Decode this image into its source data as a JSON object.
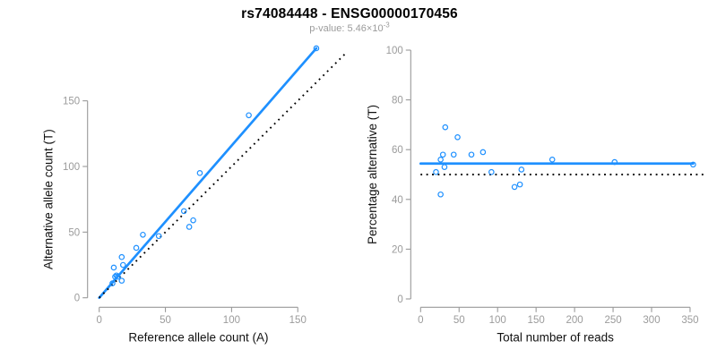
{
  "header": {
    "title": "rs74084448 - ENSG00000170456",
    "subtitle_prefix": "p-value: 5.46×10",
    "subtitle_exponent": "-3"
  },
  "colors": {
    "accent_blue": "#1E90FF",
    "axis_gray": "#999999",
    "tick_label_gray": "#9b9b9b",
    "subtitle_gray": "#9b9b9b",
    "axis_title_black": "#111111",
    "reference_line_black": "#000000",
    "background": "#ffffff"
  },
  "chart_data": [
    {
      "id": "allele-count-scatter",
      "type": "scatter",
      "xlabel": "Reference allele count (A)",
      "ylabel": "Alternative allele count (T)",
      "xticks": [
        0,
        50,
        100,
        150
      ],
      "yticks": [
        0,
        50,
        100,
        150
      ],
      "xlim": [
        0,
        186
      ],
      "ylim": [
        0,
        195
      ],
      "grid": false,
      "legend": null,
      "points": [
        [
          10,
          11
        ],
        [
          17,
          13
        ],
        [
          12,
          16
        ],
        [
          13,
          17
        ],
        [
          14,
          16
        ],
        [
          11,
          23
        ],
        [
          18,
          25
        ],
        [
          17,
          31
        ],
        [
          28,
          38
        ],
        [
          33,
          48
        ],
        [
          45,
          47
        ],
        [
          68,
          54
        ],
        [
          71,
          59
        ],
        [
          64,
          66
        ],
        [
          76,
          95
        ],
        [
          113,
          139
        ],
        [
          164,
          190
        ]
      ],
      "lines": [
        {
          "role": "fit",
          "name": "regression-line",
          "from": [
            0,
            0
          ],
          "to": [
            164,
            190
          ]
        },
        {
          "role": "identity",
          "name": "identity-line",
          "from": [
            0,
            0
          ],
          "to": [
            186,
            186
          ]
        }
      ]
    },
    {
      "id": "percentage-coverage-scatter",
      "type": "scatter",
      "xlabel": "Total number of reads",
      "ylabel": "Percentage alternative (T)",
      "xticks": [
        0,
        50,
        100,
        150,
        200,
        250,
        300,
        350
      ],
      "yticks": [
        0,
        20,
        40,
        60,
        80,
        100
      ],
      "xlim": [
        0,
        368
      ],
      "ylim": [
        0,
        100
      ],
      "grid": false,
      "legend": null,
      "points": [
        [
          20,
          51
        ],
        [
          26,
          42
        ],
        [
          26,
          56
        ],
        [
          29,
          58
        ],
        [
          31,
          53
        ],
        [
          32,
          69
        ],
        [
          43,
          58
        ],
        [
          48,
          65
        ],
        [
          66,
          58
        ],
        [
          81,
          59
        ],
        [
          92,
          51
        ],
        [
          122,
          45
        ],
        [
          129,
          46
        ],
        [
          131,
          52
        ],
        [
          171,
          56
        ],
        [
          252,
          55
        ],
        [
          354,
          54
        ]
      ],
      "lines": [
        {
          "role": "fit",
          "name": "mean-percentage-line",
          "from": [
            0,
            54.4
          ],
          "to": [
            354,
            54.4
          ]
        },
        {
          "role": "identity",
          "name": "fifty-percent-line",
          "from": [
            0,
            50
          ],
          "to": [
            368,
            50
          ]
        }
      ]
    }
  ]
}
